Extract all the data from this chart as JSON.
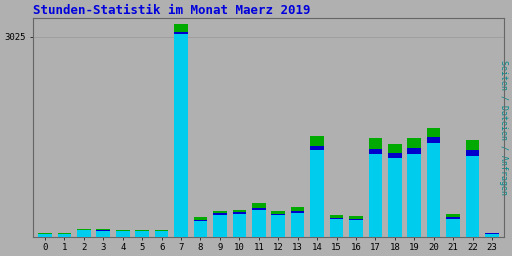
{
  "title": "Stunden-Statistik im Monat Maerz 2019",
  "title_color": "#0000dd",
  "title_fontsize": 9,
  "xlabel_values": [
    "0",
    "1",
    "2",
    "3",
    "4",
    "5",
    "6",
    "7",
    "8",
    "9",
    "10",
    "11",
    "12",
    "13",
    "14",
    "15",
    "16",
    "17",
    "18",
    "19",
    "20",
    "21",
    "22",
    "23"
  ],
  "ylabel": "Seiten / Dateien / Anfragen",
  "ylabel_color": "#008888",
  "ylabel_fontsize": 6,
  "background_color": "#b0b0b0",
  "plot_bg_color": "#b0b0b0",
  "grid_color": "#999999",
  "ylim": [
    0,
    3300
  ],
  "yticks": [
    3025
  ],
  "series": {
    "Seiten": [
      60,
      60,
      130,
      120,
      105,
      105,
      110,
      3220,
      300,
      395,
      410,
      510,
      390,
      460,
      1530,
      335,
      315,
      1490,
      1410,
      1490,
      1640,
      355,
      1460,
      65
    ],
    "Dateien": [
      55,
      55,
      115,
      108,
      95,
      95,
      100,
      3100,
      265,
      365,
      375,
      445,
      355,
      400,
      1380,
      295,
      275,
      1330,
      1275,
      1340,
      1510,
      305,
      1310,
      58
    ],
    "Anfragen": [
      50,
      50,
      105,
      100,
      88,
      88,
      95,
      3060,
      245,
      340,
      350,
      410,
      330,
      370,
      1310,
      275,
      255,
      1250,
      1200,
      1260,
      1420,
      280,
      1230,
      52
    ]
  },
  "colors": {
    "Seiten": "#00aa00",
    "Dateien": "#0000cc",
    "Anfragen": "#00ccee"
  },
  "bar_width": 0.7
}
